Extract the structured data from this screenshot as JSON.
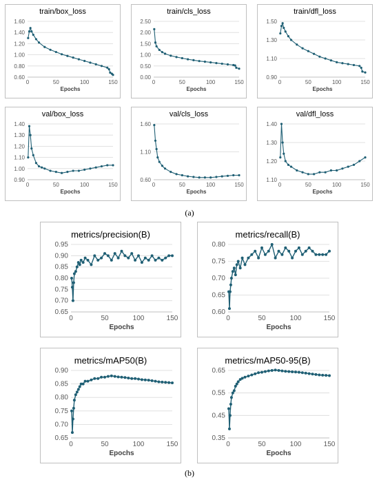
{
  "labels": {
    "a": "(a)",
    "b": "(b)"
  },
  "style": {
    "series_color": "#1f5f74",
    "grid_color": "#d9d9d9"
  },
  "chart_data": [
    {
      "type": "line",
      "title": "train/box_loss",
      "xlabel": "Epochs",
      "xlim": [
        0,
        150
      ],
      "xticks": [
        0,
        50,
        100,
        150
      ],
      "ylim": [
        0.6,
        1.6
      ],
      "yticks": [
        0.6,
        0.8,
        1.0,
        1.2,
        1.4,
        1.6
      ],
      "ydecimals": 2,
      "grid": true,
      "series": [
        {
          "x": [
            1,
            3,
            5,
            7,
            10,
            15,
            20,
            30,
            40,
            50,
            60,
            70,
            80,
            90,
            100,
            110,
            120,
            130,
            140,
            143,
            145,
            148,
            150
          ],
          "y": [
            1.3,
            1.42,
            1.48,
            1.42,
            1.36,
            1.28,
            1.22,
            1.14,
            1.09,
            1.05,
            1.01,
            0.98,
            0.95,
            0.92,
            0.89,
            0.86,
            0.83,
            0.8,
            0.77,
            0.74,
            0.68,
            0.66,
            0.64
          ]
        }
      ]
    },
    {
      "type": "line",
      "title": "train/cls_loss",
      "xlabel": "Epochs",
      "xlim": [
        0,
        150
      ],
      "xticks": [
        0,
        50,
        100,
        150
      ],
      "ylim": [
        0.0,
        2.5
      ],
      "yticks": [
        0.0,
        0.5,
        1.0,
        1.5,
        2.0,
        2.5
      ],
      "ydecimals": 2,
      "grid": true,
      "series": [
        {
          "x": [
            1,
            3,
            5,
            10,
            15,
            20,
            30,
            40,
            50,
            60,
            70,
            80,
            90,
            100,
            110,
            120,
            130,
            140,
            143,
            145,
            150
          ],
          "y": [
            2.15,
            1.55,
            1.38,
            1.22,
            1.12,
            1.05,
            0.96,
            0.9,
            0.85,
            0.8,
            0.76,
            0.72,
            0.69,
            0.66,
            0.63,
            0.6,
            0.57,
            0.54,
            0.52,
            0.42,
            0.38
          ]
        }
      ]
    },
    {
      "type": "line",
      "title": "train/dfl_loss",
      "xlabel": "Epochs",
      "xlim": [
        0,
        150
      ],
      "xticks": [
        0,
        50,
        100,
        150
      ],
      "ylim": [
        0.9,
        1.5
      ],
      "yticks": [
        0.9,
        1.1,
        1.3,
        1.5
      ],
      "ydecimals": 2,
      "grid": true,
      "series": [
        {
          "x": [
            1,
            3,
            5,
            7,
            10,
            15,
            20,
            30,
            40,
            50,
            60,
            70,
            80,
            90,
            100,
            110,
            120,
            130,
            140,
            143,
            145,
            150
          ],
          "y": [
            1.37,
            1.45,
            1.48,
            1.43,
            1.39,
            1.34,
            1.3,
            1.25,
            1.21,
            1.18,
            1.15,
            1.12,
            1.1,
            1.08,
            1.06,
            1.05,
            1.04,
            1.03,
            1.02,
            1.0,
            0.96,
            0.95
          ]
        }
      ]
    },
    {
      "type": "line",
      "title": "val/box_loss",
      "xlabel": "Epochs",
      "xlim": [
        0,
        150
      ],
      "xticks": [
        0,
        50,
        100,
        150
      ],
      "ylim": [
        0.9,
        1.4
      ],
      "yticks": [
        0.9,
        1.0,
        1.1,
        1.2,
        1.3,
        1.4
      ],
      "ydecimals": 2,
      "grid": true,
      "series": [
        {
          "x": [
            1,
            3,
            5,
            7,
            10,
            15,
            20,
            25,
            30,
            40,
            50,
            60,
            70,
            80,
            90,
            100,
            110,
            120,
            130,
            140,
            150
          ],
          "y": [
            1.1,
            1.38,
            1.3,
            1.18,
            1.12,
            1.05,
            1.02,
            1.01,
            1.0,
            0.98,
            0.97,
            0.96,
            0.97,
            0.98,
            0.98,
            0.99,
            1.0,
            1.01,
            1.02,
            1.03,
            1.03
          ]
        }
      ]
    },
    {
      "type": "line",
      "title": "val/cls_loss",
      "xlabel": "Epochs",
      "xlim": [
        0,
        150
      ],
      "xticks": [
        0,
        50,
        100,
        150
      ],
      "ylim": [
        0.6,
        1.6
      ],
      "yticks": [
        0.6,
        1.1,
        1.6
      ],
      "ydecimals": 2,
      "grid": true,
      "series": [
        {
          "x": [
            1,
            3,
            5,
            7,
            10,
            15,
            20,
            30,
            40,
            50,
            60,
            70,
            80,
            90,
            100,
            110,
            120,
            130,
            140,
            150
          ],
          "y": [
            1.58,
            1.3,
            1.15,
            1.0,
            0.92,
            0.85,
            0.8,
            0.74,
            0.7,
            0.68,
            0.66,
            0.65,
            0.64,
            0.64,
            0.64,
            0.65,
            0.66,
            0.67,
            0.68,
            0.68
          ]
        }
      ]
    },
    {
      "type": "line",
      "title": "val/dfl_loss",
      "xlabel": "Epochs",
      "xlim": [
        0,
        150
      ],
      "xticks": [
        0,
        50,
        100,
        150
      ],
      "ylim": [
        1.1,
        1.4
      ],
      "yticks": [
        1.1,
        1.2,
        1.3,
        1.4
      ],
      "ydecimals": 2,
      "grid": true,
      "series": [
        {
          "x": [
            1,
            3,
            5,
            7,
            10,
            15,
            20,
            30,
            40,
            50,
            60,
            70,
            80,
            90,
            100,
            110,
            120,
            130,
            140,
            150
          ],
          "y": [
            1.22,
            1.4,
            1.3,
            1.24,
            1.2,
            1.18,
            1.17,
            1.15,
            1.14,
            1.13,
            1.13,
            1.14,
            1.14,
            1.15,
            1.15,
            1.16,
            1.17,
            1.18,
            1.2,
            1.22
          ]
        }
      ]
    },
    {
      "type": "line",
      "title": "metrics/precision(B)",
      "xlabel": "Epochs",
      "xlim": [
        0,
        150
      ],
      "xticks": [
        0,
        50,
        100,
        150
      ],
      "ylim": [
        0.65,
        0.95
      ],
      "yticks": [
        0.65,
        0.7,
        0.75,
        0.8,
        0.85,
        0.9,
        0.95
      ],
      "ydecimals": 2,
      "grid": true,
      "series": [
        {
          "x": [
            1,
            2,
            3,
            4,
            5,
            7,
            9,
            11,
            13,
            15,
            18,
            21,
            25,
            30,
            35,
            40,
            45,
            50,
            55,
            60,
            65,
            70,
            75,
            80,
            85,
            90,
            95,
            100,
            105,
            110,
            115,
            120,
            125,
            130,
            135,
            140,
            145,
            150
          ],
          "y": [
            0.8,
            0.76,
            0.7,
            0.78,
            0.82,
            0.83,
            0.85,
            0.87,
            0.86,
            0.88,
            0.87,
            0.89,
            0.88,
            0.86,
            0.9,
            0.88,
            0.89,
            0.91,
            0.9,
            0.88,
            0.91,
            0.89,
            0.92,
            0.9,
            0.89,
            0.91,
            0.88,
            0.9,
            0.87,
            0.89,
            0.88,
            0.9,
            0.88,
            0.89,
            0.88,
            0.89,
            0.9,
            0.9
          ]
        }
      ]
    },
    {
      "type": "line",
      "title": "metrics/recall(B)",
      "xlabel": "Epochs",
      "xlim": [
        0,
        150
      ],
      "xticks": [
        0,
        50,
        100,
        150
      ],
      "ylim": [
        0.6,
        0.8
      ],
      "yticks": [
        0.6,
        0.65,
        0.7,
        0.75,
        0.8
      ],
      "ydecimals": 2,
      "grid": true,
      "series": [
        {
          "x": [
            1,
            2,
            3,
            4,
            5,
            7,
            9,
            11,
            13,
            15,
            18,
            21,
            25,
            30,
            35,
            40,
            45,
            50,
            55,
            60,
            65,
            70,
            75,
            80,
            85,
            90,
            95,
            100,
            105,
            110,
            115,
            120,
            125,
            130,
            135,
            140,
            145,
            150
          ],
          "y": [
            0.66,
            0.61,
            0.66,
            0.68,
            0.7,
            0.72,
            0.73,
            0.71,
            0.74,
            0.75,
            0.73,
            0.76,
            0.74,
            0.76,
            0.77,
            0.78,
            0.76,
            0.79,
            0.77,
            0.78,
            0.8,
            0.76,
            0.78,
            0.77,
            0.79,
            0.78,
            0.76,
            0.78,
            0.79,
            0.77,
            0.78,
            0.79,
            0.78,
            0.77,
            0.77,
            0.77,
            0.77,
            0.78
          ]
        }
      ]
    },
    {
      "type": "line",
      "title": "metrics/mAP50(B)",
      "xlabel": "Epochs",
      "xlim": [
        0,
        150
      ],
      "xticks": [
        0,
        50,
        100,
        150
      ],
      "ylim": [
        0.65,
        0.9
      ],
      "yticks": [
        0.65,
        0.7,
        0.75,
        0.8,
        0.85,
        0.9
      ],
      "ydecimals": 2,
      "grid": true,
      "series": [
        {
          "x": [
            1,
            2,
            3,
            4,
            5,
            7,
            9,
            11,
            13,
            15,
            18,
            21,
            25,
            30,
            35,
            40,
            45,
            50,
            55,
            60,
            65,
            70,
            75,
            80,
            85,
            90,
            95,
            100,
            105,
            110,
            115,
            120,
            125,
            130,
            135,
            140,
            145,
            150
          ],
          "y": [
            0.75,
            0.67,
            0.72,
            0.76,
            0.79,
            0.81,
            0.82,
            0.83,
            0.84,
            0.85,
            0.85,
            0.86,
            0.86,
            0.865,
            0.87,
            0.87,
            0.875,
            0.875,
            0.878,
            0.88,
            0.878,
            0.876,
            0.875,
            0.874,
            0.872,
            0.87,
            0.87,
            0.868,
            0.866,
            0.865,
            0.864,
            0.862,
            0.86,
            0.858,
            0.857,
            0.856,
            0.855,
            0.854
          ]
        }
      ]
    },
    {
      "type": "line",
      "title": "metrics/mAP50-95(B)",
      "xlabel": "Epochs",
      "xlim": [
        0,
        150
      ],
      "xticks": [
        0,
        50,
        100,
        150
      ],
      "ylim": [
        0.35,
        0.65
      ],
      "yticks": [
        0.35,
        0.45,
        0.55,
        0.65
      ],
      "ydecimals": 2,
      "grid": true,
      "series": [
        {
          "x": [
            1,
            2,
            3,
            4,
            5,
            7,
            9,
            11,
            13,
            15,
            18,
            21,
            25,
            30,
            35,
            40,
            45,
            50,
            55,
            60,
            65,
            70,
            75,
            80,
            85,
            90,
            95,
            100,
            105,
            110,
            115,
            120,
            125,
            130,
            135,
            140,
            145,
            150
          ],
          "y": [
            0.48,
            0.39,
            0.45,
            0.5,
            0.53,
            0.55,
            0.56,
            0.58,
            0.59,
            0.6,
            0.61,
            0.615,
            0.62,
            0.625,
            0.63,
            0.635,
            0.64,
            0.642,
            0.645,
            0.648,
            0.65,
            0.652,
            0.65,
            0.648,
            0.646,
            0.645,
            0.644,
            0.643,
            0.642,
            0.64,
            0.638,
            0.636,
            0.634,
            0.632,
            0.63,
            0.629,
            0.628,
            0.627
          ]
        }
      ]
    }
  ]
}
